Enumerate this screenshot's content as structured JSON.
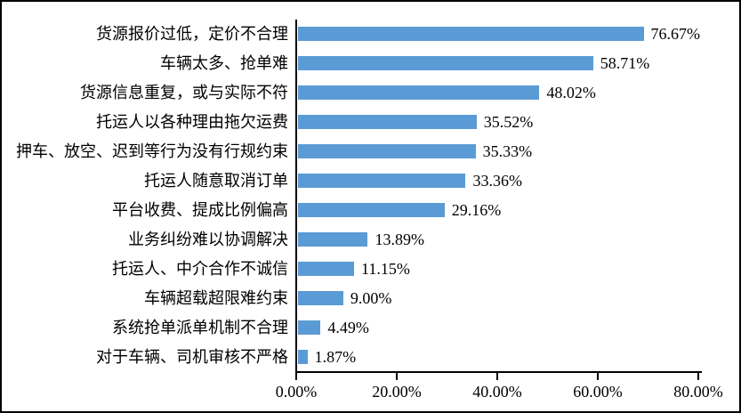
{
  "figure": {
    "background": "#ffffff",
    "border_color": "#000000"
  },
  "chart_data": {
    "type": "bar",
    "orientation": "horizontal",
    "title": "",
    "xlabel": "",
    "ylabel": "",
    "grid": false,
    "legend": null,
    "bar_color": "#5b9bd5",
    "axis_color": "#000000",
    "text_color": "#000000",
    "xlim": [
      0,
      80
    ],
    "x_tick_values": [
      0,
      20,
      40,
      60,
      80
    ],
    "x_tick_labels": [
      "0.00%",
      "20.00%",
      "40.00%",
      "60.00%",
      "80.00%"
    ],
    "categories": [
      "货源报价过低，定价不合理",
      "车辆太多、抢单难",
      "货源信息重复，或与实际不符",
      "托运人以各种理由拖欠运费",
      "押车、放空、迟到等行为没有行规约束",
      "托运人随意取消订单",
      "平台收费、提成比例偏高",
      "业务纠纷难以协调解决",
      "托运人、中介合作不诚信",
      "车辆超载超限难约束",
      "系统抢单派单机制不合理",
      "对于车辆、司机审核不严格"
    ],
    "values": [
      76.67,
      58.71,
      48.02,
      35.52,
      35.33,
      33.36,
      29.16,
      13.89,
      11.15,
      9.0,
      4.49,
      1.87
    ],
    "value_labels": [
      "76.67%",
      "58.71%",
      "48.02%",
      "35.52%",
      "35.33%",
      "33.36%",
      "29.16%",
      "13.89%",
      "11.15%",
      "9.00%",
      "4.49%",
      "1.87%"
    ]
  }
}
